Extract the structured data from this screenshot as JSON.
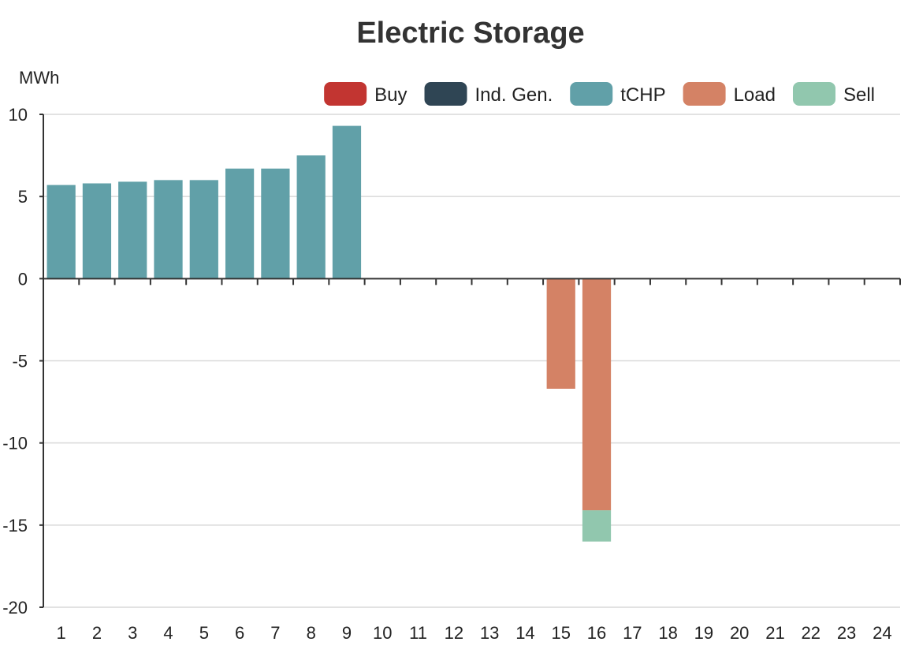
{
  "chart_data": {
    "type": "bar",
    "stacked": true,
    "title": "Electric Storage",
    "ylabel": "MWh",
    "xlabel": "",
    "ylim": [
      -20,
      10
    ],
    "yticks": [
      10,
      5,
      0,
      -5,
      -10,
      -15,
      -20
    ],
    "grid": true,
    "legend_position": "top-right",
    "categories": [
      "1",
      "2",
      "3",
      "4",
      "5",
      "6",
      "7",
      "8",
      "9",
      "10",
      "11",
      "12",
      "13",
      "14",
      "15",
      "16",
      "17",
      "18",
      "19",
      "20",
      "21",
      "22",
      "23",
      "24"
    ],
    "series": [
      {
        "name": "Buy",
        "color": "#c23531",
        "values": [
          0,
          0,
          0,
          0,
          0,
          0,
          0,
          0,
          0,
          0,
          0,
          0,
          0,
          0,
          0,
          0,
          0,
          0,
          0,
          0,
          0,
          0,
          0,
          0
        ]
      },
      {
        "name": "Ind. Gen.",
        "color": "#2f4554",
        "values": [
          0,
          0,
          0,
          0,
          0,
          0,
          0,
          0,
          0,
          0,
          0,
          0,
          0,
          0,
          0,
          0,
          0,
          0,
          0,
          0,
          0,
          0,
          0,
          0
        ]
      },
      {
        "name": "tCHP",
        "color": "#61a0a8",
        "values": [
          5.7,
          5.8,
          5.9,
          6.0,
          6.0,
          6.7,
          6.7,
          7.5,
          9.3,
          0,
          0,
          0,
          0,
          0,
          0,
          0,
          0,
          0,
          0,
          0,
          0,
          0,
          0,
          0
        ]
      },
      {
        "name": "Load",
        "color": "#d48265",
        "values": [
          0,
          0,
          0,
          0,
          0,
          0,
          0,
          0,
          0,
          0,
          0,
          0,
          0,
          0,
          -6.7,
          -14.1,
          0,
          0,
          0,
          0,
          0,
          0,
          0,
          0
        ]
      },
      {
        "name": "Sell",
        "color": "#91c7ae",
        "values": [
          0,
          0,
          0,
          0,
          0,
          0,
          0,
          0,
          0,
          0,
          0,
          0,
          0,
          0,
          0,
          -1.9,
          0,
          0,
          0,
          0,
          0,
          0,
          0,
          0
        ]
      }
    ]
  }
}
